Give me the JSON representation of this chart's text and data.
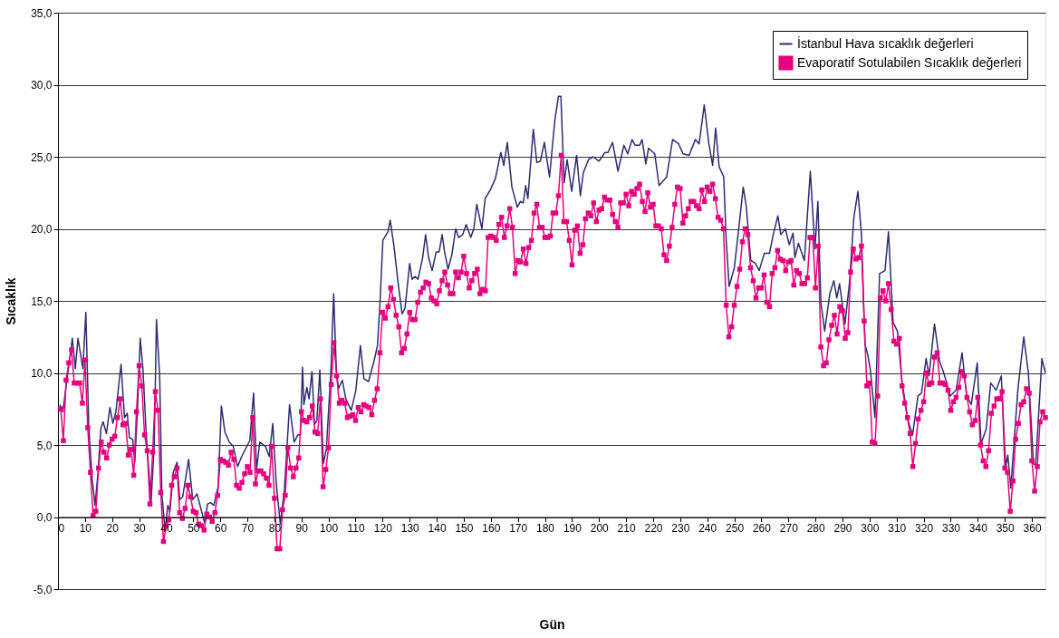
{
  "chart_data": {
    "type": "line",
    "xlabel": "Gün",
    "ylabel": "Sıcaklık",
    "xlim": [
      0,
      365
    ],
    "xticks": [
      0,
      10,
      20,
      30,
      40,
      50,
      60,
      70,
      80,
      90,
      100,
      110,
      120,
      130,
      140,
      150,
      160,
      170,
      180,
      190,
      200,
      210,
      220,
      230,
      240,
      250,
      260,
      270,
      280,
      290,
      300,
      310,
      320,
      330,
      340,
      350,
      360
    ],
    "ylim": [
      -5,
      35
    ],
    "yticks": [
      {
        "value": -5,
        "label": "-5,0"
      },
      {
        "value": 0,
        "label": "0,0"
      },
      {
        "value": 5,
        "label": "5,0"
      },
      {
        "value": 10,
        "label": "10,0"
      },
      {
        "value": 15,
        "label": "15,0"
      },
      {
        "value": 20,
        "label": "20,0"
      },
      {
        "value": 25,
        "label": "25,0"
      },
      {
        "value": 30,
        "label": "30,0"
      },
      {
        "value": 35,
        "label": "35,0"
      }
    ],
    "grid": "y",
    "legend": "top right",
    "line_style": "solid",
    "series": [
      {
        "name": "İstanbul Hava sıcaklık değerleri",
        "color": "#2b2d6e",
        "marker": "none",
        "x": [
          0.7,
          1.8,
          3.7,
          4.4,
          5.3,
          6.4,
          7.4,
          9.2,
          10.3,
          11.4,
          12.6,
          13.7,
          14.8,
          15.9,
          16.7,
          17.9,
          19.2,
          20.3,
          21.4,
          23.3,
          24.6,
          25.6,
          26.4,
          27.6,
          28.4,
          29.4,
          30.4,
          31.4,
          32.6,
          34.4,
          35.6,
          36.4,
          37.6,
          38.4,
          39.6,
          40.6,
          41.4,
          42.6,
          44,
          45,
          46.1,
          48.3,
          49.8,
          51.4,
          54.2,
          55.3,
          56.4,
          57.6,
          59.2,
          60.4,
          61.7,
          63.3,
          64.8,
          66.4,
          67.9,
          70.9,
          72.3,
          73.4,
          74.6,
          76.7,
          78.1,
          79.4,
          80.7,
          82.2,
          83.7,
          85.6,
          87.3,
          88.7,
          89.6,
          90.4,
          90.9,
          92,
          92.8,
          93.9,
          94.8,
          95.7,
          96.8,
          98.1,
          99.2,
          100.9,
          101.9,
          102.9,
          103.7,
          105.1,
          106.4,
          108.4,
          110.1,
          111.8,
          113.1,
          114.8,
          116.8,
          118.1,
          119,
          120.1,
          122,
          122.8,
          124.2,
          125.7,
          127.2,
          128.3,
          130,
          130.9,
          132,
          133.1,
          134.8,
          135.9,
          137,
          138.3,
          139.8,
          140.9,
          142,
          142.9,
          144.2,
          145.6,
          147,
          148.1,
          149.6,
          150.9,
          152.6,
          153.7,
          154.8,
          156.7,
          157.9,
          159.8,
          161.7,
          163.7,
          164.8,
          166.1,
          167.8,
          169.8,
          170.9,
          172,
          172.9,
          173.7,
          175.7,
          177,
          178.3,
          179.8,
          181.7,
          183.7,
          185,
          185.9,
          187.1,
          188.2,
          189.9,
          191.7,
          193.1,
          194.2,
          196.1,
          197.8,
          200,
          202.2,
          203.3,
          205,
          207,
          209.2,
          210.6,
          212.2,
          213.3,
          215,
          215.9,
          217.3,
          218.3,
          220.6,
          222.2,
          225,
          227.2,
          229.4,
          231.1,
          233.3,
          235.6,
          237,
          238.9,
          240.6,
          242,
          243.1,
          244.4,
          246.1,
          247,
          248.1,
          250,
          251.4,
          253.3,
          254.4,
          256.1,
          257.8,
          259.2,
          261.1,
          263,
          264.4,
          266.1,
          267.2,
          268.9,
          270.3,
          271.7,
          272.4,
          273.7,
          275.9,
          278.1,
          279.8,
          280.9,
          282,
          283.4,
          285.3,
          286.8,
          287.9,
          288.9,
          290.9,
          292.6,
          294.2,
          295.7,
          297,
          298.3,
          299.4,
          300.3,
          302,
          303.7,
          305.7,
          307,
          308.7,
          310.3,
          312,
          314.2,
          315.9,
          317.9,
          319.2,
          320.9,
          322,
          324,
          325.9,
          327.6,
          329.8,
          332,
          334.2,
          335.9,
          337.6,
          339.8,
          341.2,
          343.1,
          344.8,
          346.8,
          348.7,
          350.3,
          351.1,
          352.2,
          354.8,
          357,
          358.7,
          360.6,
          361.4,
          363.7,
          365
        ],
        "values": [
          7.8,
          7.3,
          10.1,
          11.1,
          12.4,
          10.3,
          12.4,
          10.3,
          14.2,
          6.2,
          2.7,
          0.8,
          3.1,
          6.2,
          6.6,
          5.8,
          7.6,
          6.5,
          7.3,
          10.6,
          6.9,
          7.2,
          5.5,
          5.4,
          3.8,
          7.5,
          12.4,
          10.3,
          5.8,
          1.0,
          5.1,
          13.7,
          9.7,
          1.6,
          -1.0,
          0.8,
          0.4,
          3.1,
          3.8,
          1.2,
          1.4,
          4.0,
          1.2,
          1.6,
          -0.4,
          0.9,
          1.0,
          0.8,
          2.1,
          7.7,
          5.9,
          5.2,
          4.9,
          3.5,
          4.2,
          5.3,
          8.6,
          3.3,
          5.2,
          4.9,
          4.2,
          6.5,
          2.3,
          -0.5,
          1.9,
          7.8,
          5.2,
          5.7,
          5.7,
          10.4,
          7.8,
          9.0,
          8.2,
          10.1,
          6.4,
          6.7,
          10.2,
          3.7,
          4.7,
          10.2,
          15.5,
          10.2,
          8.9,
          9.5,
          8.2,
          7.4,
          8.8,
          11.9,
          9.6,
          9.4,
          10.8,
          11.9,
          14.7,
          19.2,
          19.8,
          20.6,
          18.8,
          16.3,
          14.1,
          14.5,
          17.6,
          16.5,
          16.7,
          16.5,
          18.0,
          19.6,
          18.0,
          17.1,
          18.4,
          18.4,
          19.6,
          18.4,
          17.2,
          18.2,
          20.0,
          19.4,
          19.6,
          20.3,
          19.4,
          20.0,
          21.7,
          20.0,
          22.1,
          22.7,
          23.5,
          25.3,
          24.4,
          26.0,
          22.9,
          21.5,
          21.9,
          21.8,
          23.0,
          22.1,
          26.9,
          24.6,
          24.7,
          26.0,
          23.6,
          27.6,
          29.2,
          29.2,
          23.2,
          24.8,
          22.6,
          25.1,
          22.3,
          23.9,
          24.8,
          25.0,
          24.7,
          25.3,
          25.3,
          26.0,
          24.0,
          25.8,
          25.2,
          26.2,
          25.8,
          25.8,
          26.2,
          24.5,
          25.6,
          25.2,
          23.0,
          23.6,
          26.2,
          25.9,
          25.2,
          25.1,
          26.2,
          25.9,
          28.6,
          25.9,
          24.4,
          27.0,
          24.3,
          23.6,
          19.2,
          16.0,
          17.3,
          19.6,
          22.9,
          21.6,
          17.8,
          17.6,
          17.1,
          18.3,
          18.3,
          19.6,
          20.9,
          19.6,
          20.0,
          18.9,
          19.7,
          18.0,
          19.0,
          17.8,
          24.0,
          18.6,
          21.9,
          14.9,
          12.9,
          15.5,
          16.4,
          15.2,
          16.2,
          13.4,
          16.3,
          20.8,
          22.6,
          19.6,
          12.0,
          11.2,
          10.2,
          6.9,
          16.9,
          17.1,
          19.8,
          13.5,
          12.9,
          9.4,
          6.7,
          5.7,
          8.4,
          8.6,
          11.0,
          9.8,
          13.4,
          10.8,
          9.9,
          8.4,
          8.8,
          11.4,
          8.4,
          7.8,
          10.7,
          5.1,
          6.1,
          9.3,
          8.8,
          9.8,
          3.5,
          4.3,
          2.0,
          8.8,
          12.5,
          10.0,
          3.7,
          3.6,
          11.0,
          10.0
        ]
      },
      {
        "name": "Evaporatif Sotulabilen Sıcaklık değerleri",
        "color": "#e6007e",
        "marker": "square",
        "x": [
          1,
          2,
          3,
          4,
          5,
          6,
          7,
          8,
          9,
          10,
          11,
          12,
          13,
          14,
          15,
          16,
          17,
          18,
          19,
          20,
          21,
          22,
          23,
          24,
          25,
          26,
          27,
          28,
          29,
          30,
          31,
          32,
          33,
          34,
          35,
          36,
          37,
          38,
          39,
          40,
          41,
          42,
          43,
          44,
          45,
          46,
          47,
          48,
          49,
          50,
          51,
          52,
          53,
          54,
          55,
          56,
          57,
          58,
          59,
          60,
          61,
          62,
          63,
          64,
          65,
          66,
          67,
          68,
          69,
          70,
          71,
          72,
          73,
          74,
          75,
          76,
          77,
          78,
          79,
          80,
          81,
          82,
          83,
          84,
          85,
          86,
          87,
          88,
          89,
          90,
          91,
          92,
          93,
          94,
          95,
          96,
          97,
          98,
          99,
          100,
          101,
          102,
          103,
          104,
          105,
          106,
          107,
          108,
          109,
          110,
          111,
          112,
          113,
          114,
          115,
          116,
          117,
          118,
          119,
          120,
          121,
          122,
          123,
          124,
          125,
          126,
          127,
          128,
          129,
          130,
          131,
          132,
          133,
          134,
          135,
          136,
          137,
          138,
          139,
          140,
          141,
          142,
          143,
          144,
          145,
          146,
          147,
          148,
          149,
          150,
          151,
          152,
          153,
          154,
          155,
          156,
          157,
          158,
          159,
          160,
          161,
          162,
          163,
          164,
          165,
          166,
          167,
          168,
          169,
          170,
          171,
          172,
          173,
          174,
          175,
          176,
          177,
          178,
          179,
          180,
          181,
          182,
          183,
          184,
          185,
          186,
          187,
          188,
          189,
          190,
          191,
          192,
          193,
          194,
          195,
          196,
          197,
          198,
          199,
          200,
          201,
          202,
          203,
          204,
          205,
          206,
          207,
          208,
          209,
          210,
          211,
          212,
          213,
          214,
          215,
          216,
          217,
          218,
          219,
          220,
          221,
          222,
          223,
          224,
          225,
          226,
          227,
          228,
          229,
          230,
          231,
          232,
          233,
          234,
          235,
          236,
          237,
          238,
          239,
          240,
          241,
          242,
          243,
          244,
          245,
          246,
          247,
          248,
          249,
          250,
          251,
          252,
          253,
          254,
          255,
          256,
          257,
          258,
          259,
          260,
          261,
          262,
          263,
          264,
          265,
          266,
          267,
          268,
          269,
          270,
          271,
          272,
          273,
          274,
          275,
          276,
          277,
          278,
          279,
          280,
          281,
          282,
          283,
          284,
          285,
          286,
          287,
          288,
          289,
          290,
          291,
          292,
          293,
          294,
          295,
          296,
          297,
          298,
          299,
          300,
          301,
          302,
          303,
          304,
          305,
          306,
          307,
          308,
          309,
          310,
          311,
          312,
          313,
          314,
          315,
          316,
          317,
          318,
          319,
          320,
          321,
          322,
          323,
          324,
          325,
          326,
          327,
          328,
          329,
          330,
          331,
          332,
          333,
          334,
          335,
          336,
          337,
          338,
          339,
          340,
          341,
          342,
          343,
          344,
          345,
          346,
          347,
          348,
          349,
          350,
          351,
          352,
          353,
          354,
          355,
          356,
          357,
          358,
          359,
          360,
          361,
          362,
          363,
          364,
          365
        ],
        "values": [
          7.5,
          5.3,
          9.5,
          10.7,
          11.6,
          9.3,
          9.3,
          9.3,
          7.9,
          10.9,
          6.2,
          3.1,
          0.1,
          0.4,
          3.4,
          5.2,
          4.5,
          4.1,
          5.0,
          5.4,
          5.6,
          6.9,
          8.2,
          6.4,
          6.5,
          4.3,
          4.7,
          2.9,
          7.3,
          10.5,
          9.1,
          5.7,
          4.6,
          0.9,
          4.5,
          8.7,
          7.4,
          1.7,
          -1.7,
          -0.6,
          -0.2,
          2.2,
          2.8,
          3.4,
          0.3,
          -0.1,
          0.6,
          2.2,
          1.4,
          0.4,
          0.3,
          -0.5,
          -0.6,
          -0.9,
          0.2,
          0.0,
          -0.3,
          0.3,
          1.5,
          4.0,
          3.9,
          3.8,
          3.6,
          4.5,
          4.0,
          2.2,
          2.0,
          2.4,
          3.0,
          3.5,
          3.1,
          6.9,
          2.3,
          3.2,
          3.2,
          3.0,
          2.7,
          2.2,
          4.9,
          1.3,
          -2.2,
          -2.2,
          0.5,
          1.5,
          4.8,
          3.4,
          2.8,
          3.4,
          4.1,
          7.3,
          6.7,
          6.6,
          6.9,
          7.7,
          5.9,
          5.8,
          8.2,
          2.1,
          3.3,
          4.8,
          9.2,
          12.1,
          9.8,
          7.9,
          8.1,
          7.9,
          6.9,
          7.0,
          7.1,
          6.7,
          7.6,
          7.3,
          7.8,
          7.7,
          7.6,
          7.1,
          8.1,
          8.9,
          11.4,
          14.2,
          13.8,
          14.6,
          15.9,
          15.1,
          14.0,
          13.2,
          11.4,
          11.7,
          12.7,
          14.2,
          13.7,
          13.7,
          14.9,
          15.6,
          15.9,
          16.3,
          16.2,
          15.2,
          15.0,
          14.8,
          15.7,
          16.4,
          17.0,
          16.1,
          15.5,
          15.5,
          17.0,
          16.6,
          17.0,
          18.1,
          16.9,
          15.9,
          16.4,
          16.9,
          17.2,
          15.5,
          15.8,
          15.7,
          19.4,
          19.5,
          19.4,
          19.2,
          20.3,
          20.8,
          19.4,
          20.2,
          21.4,
          20.1,
          16.9,
          17.8,
          17.7,
          18.6,
          17.6,
          18.7,
          19.2,
          21.1,
          21.7,
          20.1,
          20.1,
          19.4,
          19.4,
          19.5,
          21.1,
          21.1,
          22.3,
          25.1,
          20.5,
          20.5,
          19.2,
          17.5,
          19.9,
          20.2,
          18.3,
          18.9,
          20.7,
          21.1,
          20.9,
          21.8,
          20.5,
          21.3,
          21.4,
          22.2,
          22.0,
          22.0,
          21.0,
          20.5,
          20.1,
          21.8,
          21.8,
          22.4,
          21.6,
          22.6,
          22.4,
          22.8,
          23.1,
          21.9,
          21.2,
          22.5,
          21.5,
          21.7,
          20.2,
          20.2,
          20.0,
          18.2,
          17.8,
          18.8,
          20.1,
          21.7,
          22.9,
          22.8,
          20.4,
          20.9,
          21.4,
          21.9,
          21.9,
          21.6,
          21.4,
          22.7,
          21.9,
          22.9,
          22.6,
          23.1,
          22.1,
          20.8,
          20.6,
          20.0,
          14.7,
          12.5,
          13.2,
          14.7,
          16.0,
          17.2,
          19.1,
          20.0,
          19.6,
          17.3,
          16.4,
          15.2,
          15.9,
          15.9,
          16.8,
          14.9,
          14.6,
          16.9,
          17.3,
          18.5,
          17.9,
          17.8,
          17.1,
          17.7,
          17.8,
          16.1,
          17.1,
          16.9,
          16.2,
          16.2,
          16.6,
          19.4,
          19.4,
          15.9,
          18.8,
          11.8,
          10.5,
          10.7,
          12.3,
          13.3,
          14.0,
          12.7,
          14.6,
          14.3,
          12.4,
          12.8,
          17.0,
          18.6,
          17.9,
          18.0,
          18.8,
          13.6,
          9.1,
          9.3,
          5.2,
          5.1,
          8.4,
          15.2,
          15.7,
          15.0,
          16.2,
          14.4,
          12.2,
          12.0,
          12.4,
          9.1,
          7.9,
          6.9,
          5.8,
          3.5,
          5.1,
          6.8,
          7.4,
          8.0,
          10.0,
          9.2,
          9.3,
          11.1,
          11.4,
          9.3,
          9.3,
          9.2,
          8.8,
          7.4,
          8.0,
          8.3,
          9.0,
          10.1,
          9.8,
          8.3,
          7.3,
          6.4,
          6.7,
          8.3,
          5.0,
          3.9,
          3.5,
          4.6,
          7.2,
          7.7,
          8.2,
          8.2,
          8.7,
          3.4,
          3.1,
          0.4,
          2.5,
          5.4,
          6.5,
          7.8,
          8.0,
          8.9,
          8.6,
          3.9,
          1.8,
          3.5,
          6.6,
          7.3,
          6.9
        ]
      }
    ]
  }
}
